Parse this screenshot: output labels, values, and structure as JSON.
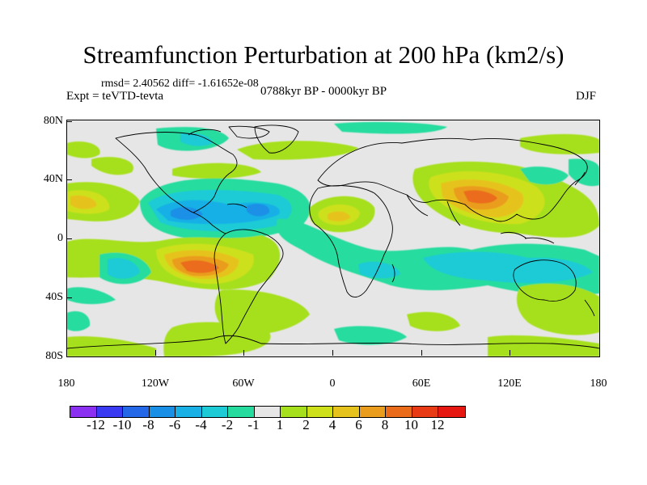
{
  "header": {
    "title": "Streamfunction Perturbation at 200 hPa (km2/s)",
    "stats": "rmsd= 2.40562 diff= -1.61652e-08",
    "experiment": "Expt = teVTD-tevta",
    "period": "0788kyr BP - 0000kyr BP",
    "season": "DJF"
  },
  "axes": {
    "lat_labels": [
      "80N",
      "40N",
      "0",
      "40S",
      "80S"
    ],
    "lon_labels": [
      "180",
      "120W",
      "60W",
      "0",
      "60E",
      "120E",
      "180"
    ]
  },
  "colorbar": {
    "labels": [
      "-12",
      "-10",
      "-8",
      "-6",
      "-4",
      "-2",
      "-1",
      "1",
      "2",
      "4",
      "6",
      "8",
      "10",
      "12"
    ],
    "colors": [
      "#8b2ff0",
      "#3a3af2",
      "#2468e8",
      "#1a8fe6",
      "#19b0e6",
      "#1dcbd6",
      "#25dc9e",
      "#e6e6e6",
      "#a6e01c",
      "#cde01a",
      "#e6c31c",
      "#ea9c1c",
      "#ea6c1a",
      "#e83a14",
      "#e61610"
    ]
  },
  "map_field": {
    "colors": {
      "neutral": "#e6e6e6",
      "pos1": "#a6e01c",
      "pos2": "#cde01a",
      "pos3": "#e6c31c",
      "pos4": "#ea9c1c",
      "pos5": "#ea6c1a",
      "pos6": "#e83a14",
      "neg1": "#25dc9e",
      "neg2": "#1dcbd6",
      "neg3": "#19b0e6",
      "neg4": "#1a8fe6"
    }
  }
}
